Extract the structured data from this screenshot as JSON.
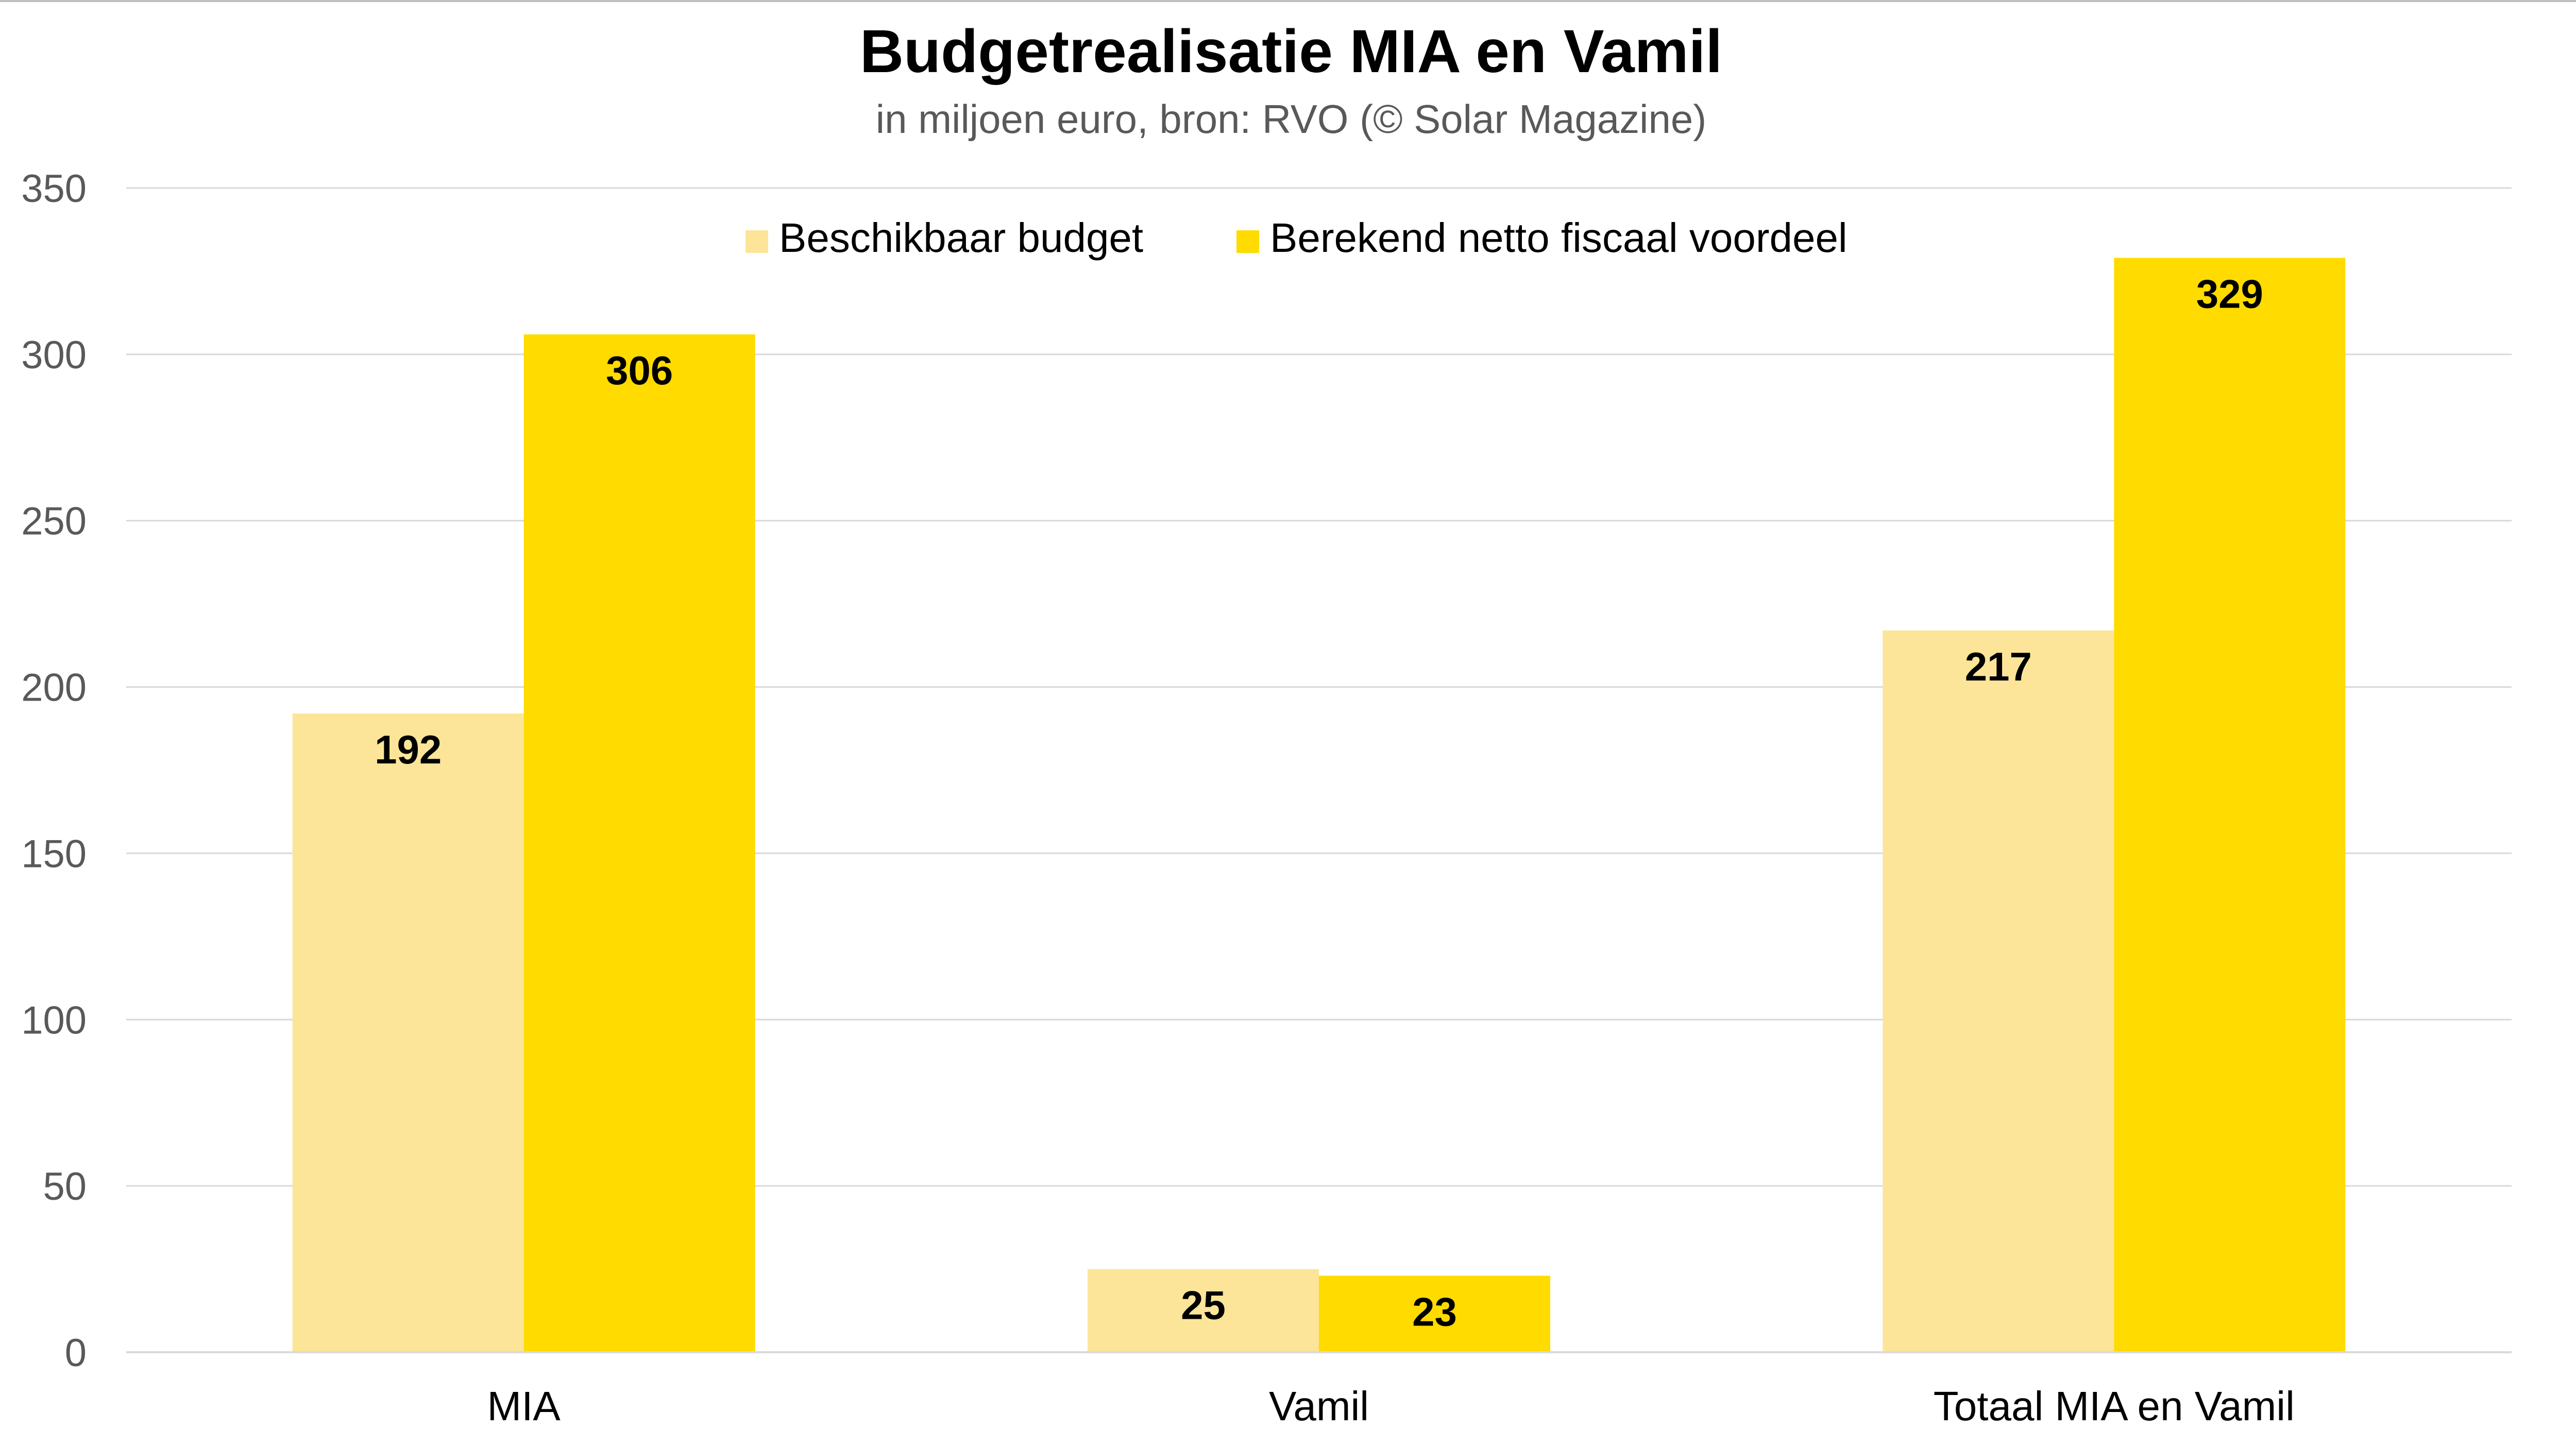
{
  "chart_data": {
    "type": "bar",
    "title": "Budgetrealisatie MIA en Vamil",
    "subtitle": "in miljoen euro, bron: RVO (© Solar Magazine)",
    "categories": [
      "MIA",
      "Vamil",
      "Totaal MIA en Vamil"
    ],
    "series": [
      {
        "name": "Beschikbaar budget",
        "values": [
          192,
          25,
          217
        ],
        "color": "#FCE598"
      },
      {
        "name": "Berekend netto fiscaal voordeel",
        "values": [
          306,
          23,
          329
        ],
        "color": "#FFDB00"
      }
    ],
    "yticks": [
      "0",
      "50",
      "100",
      "150",
      "200",
      "250",
      "300",
      "350"
    ],
    "ylim": [
      0,
      350
    ],
    "xlabel": "",
    "ylabel": "",
    "grid": true,
    "legend_position": "top-center"
  }
}
